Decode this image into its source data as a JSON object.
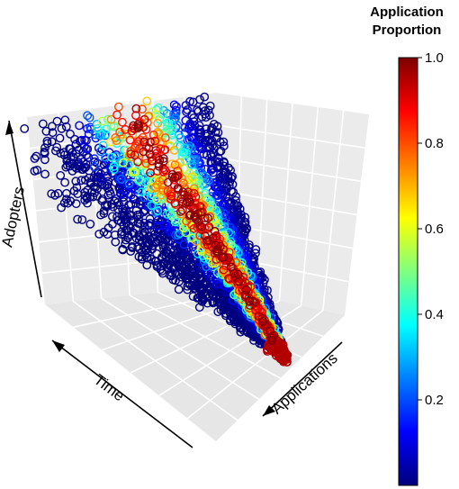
{
  "chart_data": {
    "type": "scatter",
    "projection": "3d",
    "title": "",
    "xlabel": "Applications",
    "ylabel": "Time",
    "zlabel": "Adopters",
    "point_style": "open-circle",
    "grid": true,
    "colorbar": {
      "title_lines": [
        "Application",
        "Proportion"
      ],
      "range": [
        0,
        1
      ],
      "ticks": [
        0.2,
        0.4,
        0.6,
        0.8,
        1.0
      ],
      "tick_labels": [
        "0.2",
        "0.4",
        "0.6",
        "0.8",
        "1.0"
      ],
      "palette": [
        "#00007f",
        "#0000ff",
        "#007fff",
        "#00ffff",
        "#7fff7f",
        "#ffff00",
        "#ff7f00",
        "#ff0000",
        "#7f0000"
      ]
    },
    "description_of_data": "Points form a wedge whose application proportion peaks (~1.0) along a central ridge and falls to ~0 at the edges"
  }
}
